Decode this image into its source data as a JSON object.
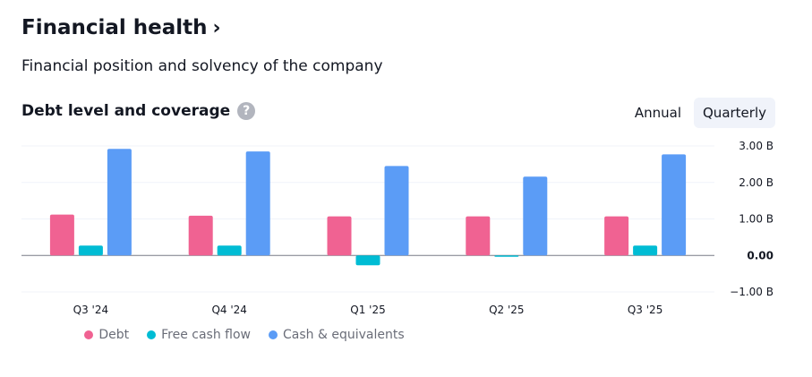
{
  "header": {
    "title": "Financial health",
    "chevron": "›",
    "subtitle": "Financial position and solvency of the company"
  },
  "section": {
    "title": "Debt level and coverage",
    "help_glyph": "?"
  },
  "toggle": {
    "annual_label": "Annual",
    "quarterly_label": "Quarterly",
    "active": "quarterly"
  },
  "chart_data": {
    "type": "bar",
    "categories": [
      "Q3 '24",
      "Q4 '24",
      "Q1 '25",
      "Q2 '25",
      "Q3 '25"
    ],
    "series": [
      {
        "name": "Debt",
        "color": "#f06292",
        "values": [
          1.12,
          1.09,
          1.07,
          1.07,
          1.07
        ]
      },
      {
        "name": "Free cash flow",
        "color": "#00bcd4",
        "values": [
          0.27,
          0.27,
          -0.27,
          -0.03,
          0.27
        ]
      },
      {
        "name": "Cash & equivalents",
        "color": "#5b9cf6",
        "values": [
          2.92,
          2.85,
          2.45,
          2.16,
          2.77
        ]
      }
    ],
    "yticks": [
      {
        "value": 3,
        "label": "3.00 B"
      },
      {
        "value": 2,
        "label": "2.00 B"
      },
      {
        "value": 1,
        "label": "1.00 B"
      },
      {
        "value": 0,
        "label": "0.00"
      },
      {
        "value": -1,
        "label": "−1.00 B"
      }
    ],
    "ylim": [
      -1,
      3
    ],
    "unit": "B",
    "legend_position": "bottom"
  }
}
